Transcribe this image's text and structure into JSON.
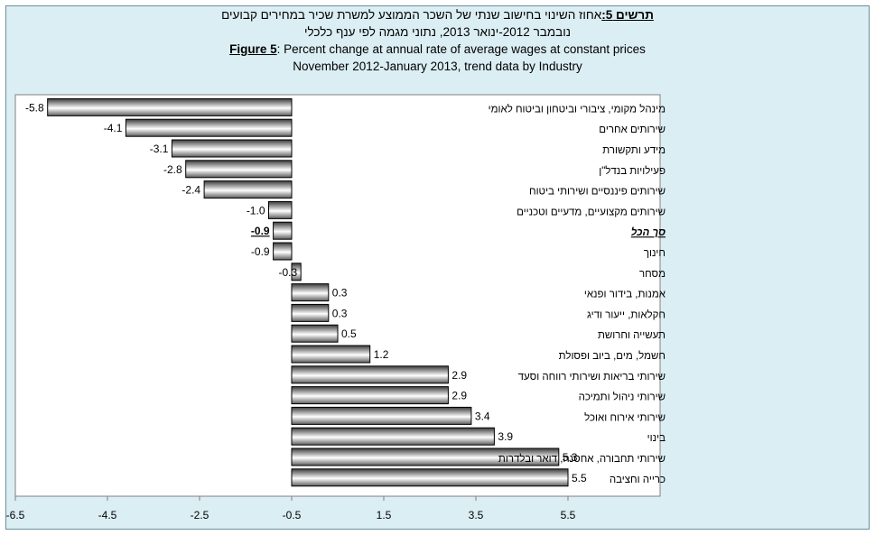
{
  "title": {
    "he_label": "תרשים 5:",
    "he_line1": "אחוז השינוי בחישוב שנתי של השכר הממוצע למשרת שכיר במחירים קבועים",
    "he_line2": "נובמבר 2012-ינואר 2013, נתוני מגמה לפי ענף כלכלי",
    "en_label": "Figure 5",
    "en_line1": ": Percent change at annual rate of average wages at constant prices",
    "en_line2": "November 2012-January 2013, trend data by Industry"
  },
  "colors": {
    "background": "#dbeef4",
    "plot_area": "#ffffff",
    "bar_dark": "#3a3a3a",
    "bar_light": "#ffffff",
    "bar_edge": "#000000"
  },
  "chart_data": {
    "type": "bar",
    "orientation": "horizontal",
    "xlim": [
      -6.5,
      7.5
    ],
    "x_ticks": [
      "-6.5",
      "-4.5",
      "-2.5",
      "-0.5",
      "1.5",
      "3.5",
      "5.5"
    ],
    "x_tick_values": [
      -6.5,
      -4.5,
      -2.5,
      -0.5,
      1.5,
      3.5,
      5.5
    ],
    "bar_origin": -0.5,
    "categories": [
      "מינהל מקומי, ציבורי וביטחון וביטוח לאומי",
      "שירותים אחרים",
      "מידע ותקשורת",
      "פעילויות בנדל\"ן",
      "שירותים פיננסיים ושירותי ביטוח",
      "שירותים מקצועיים, מדעיים וטכניים",
      "סך הכל",
      "חינוך",
      "מסחר",
      "אמנות, בידור ופנאי",
      "חקלאות, ייעור ודיג",
      "תעשייה וחרושת",
      "חשמל, מים, ביוב ופסולת",
      "שירותי בריאות ושירותי רווחה וסעד",
      "שירותי ניהול ותמיכה",
      "שירותי אירוח ואוכל",
      "בינוי",
      "שירותי תחבורה, אחסנה, דואר ובלדרות",
      "כרייה וחציבה"
    ],
    "values": [
      -5.8,
      -4.1,
      -3.1,
      -2.8,
      -2.4,
      -1.0,
      -0.9,
      -0.9,
      -0.3,
      0.3,
      0.3,
      0.5,
      1.2,
      2.9,
      2.9,
      3.4,
      3.9,
      5.3,
      5.5
    ],
    "value_labels": [
      "-5.8",
      "-4.1",
      "-3.1",
      "-2.8",
      "-2.4",
      "-1.0",
      "-0.9",
      "-0.9",
      "-0.3",
      "0.3",
      "0.3",
      "0.5",
      "1.2",
      "2.9",
      "2.9",
      "3.4",
      "3.9",
      "5.3",
      "5.5"
    ],
    "highlight_index": 6
  }
}
